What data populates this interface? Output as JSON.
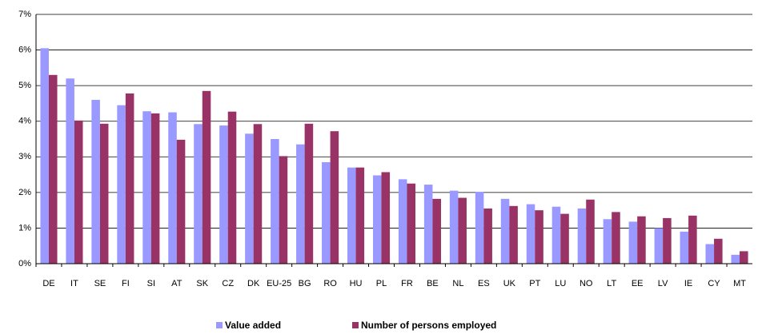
{
  "chart_data": {
    "type": "bar",
    "categories": [
      "DE",
      "IT",
      "SE",
      "FI",
      "SI",
      "AT",
      "SK",
      "CZ",
      "DK",
      "EU-25",
      "BG",
      "RO",
      "HU",
      "PL",
      "FR",
      "BE",
      "NL",
      "ES",
      "UK",
      "PT",
      "LU",
      "NO",
      "LT",
      "EE",
      "LV",
      "IE",
      "CY",
      "MT"
    ],
    "series": [
      {
        "name": "Value added",
        "color": "#9999ff",
        "values": [
          6.05,
          5.2,
          4.6,
          4.45,
          4.28,
          4.25,
          3.92,
          3.88,
          3.65,
          3.5,
          3.35,
          2.85,
          2.7,
          2.48,
          2.37,
          2.22,
          2.05,
          2.02,
          1.82,
          1.67,
          1.6,
          1.55,
          1.25,
          1.18,
          1.0,
          0.9,
          0.55,
          0.25
        ]
      },
      {
        "name": "Number of persons employed",
        "color": "#993366",
        "values": [
          5.3,
          4.02,
          3.93,
          4.78,
          4.22,
          3.48,
          4.85,
          4.27,
          3.92,
          3.02,
          3.93,
          3.72,
          2.7,
          2.57,
          2.25,
          1.82,
          1.85,
          1.55,
          1.62,
          1.5,
          1.4,
          1.8,
          1.45,
          1.33,
          1.28,
          1.35,
          0.7,
          0.35
        ]
      }
    ],
    "ylim": [
      0,
      7
    ],
    "yticks": [
      {
        "value": 0,
        "label": "0%"
      },
      {
        "value": 1,
        "label": "1%"
      },
      {
        "value": 2,
        "label": "2%"
      },
      {
        "value": 3,
        "label": "3%"
      },
      {
        "value": 4,
        "label": "4%"
      },
      {
        "value": 5,
        "label": "5%"
      },
      {
        "value": 6,
        "label": "6%"
      },
      {
        "value": 7,
        "label": "7%"
      }
    ],
    "grid": true
  }
}
